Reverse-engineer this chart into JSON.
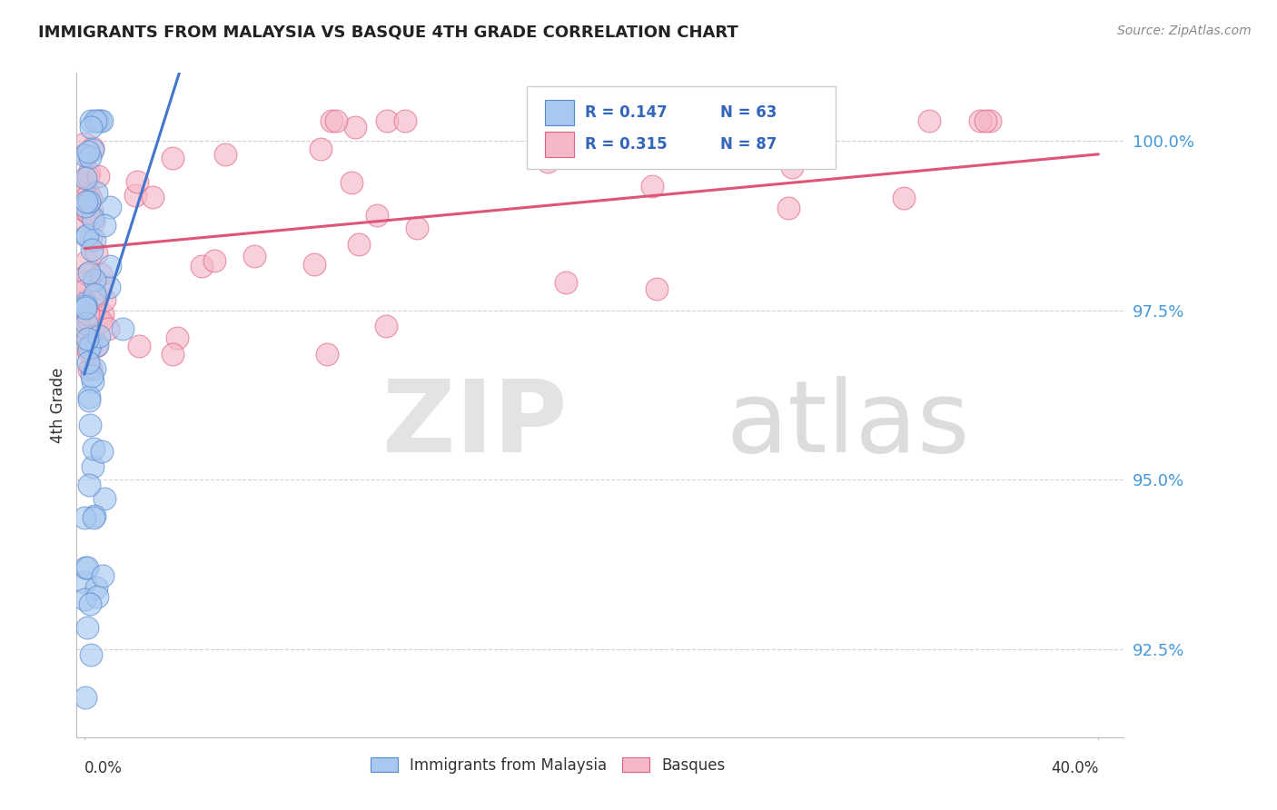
{
  "title": "IMMIGRANTS FROM MALAYSIA VS BASQUE 4TH GRADE CORRELATION CHART",
  "source": "Source: ZipAtlas.com",
  "ylabel": "4th Grade",
  "ylim": [
    91.2,
    101.0
  ],
  "xlim": [
    -0.003,
    0.41
  ],
  "yticks": [
    92.5,
    95.0,
    97.5,
    100.0
  ],
  "ytick_labels": [
    "92.5%",
    "95.0%",
    "97.5%",
    "100.0%"
  ],
  "legend_r1": "R = 0.147",
  "legend_n1": "N = 63",
  "legend_r2": "R = 0.315",
  "legend_n2": "N = 87",
  "blue_fill": "#A8C8F0",
  "blue_edge": "#5588CC",
  "pink_fill": "#F5B8C8",
  "pink_edge": "#E06080",
  "blue_line_color": "#4477CC",
  "pink_line_color": "#DD5577",
  "watermark_zip": "ZIP",
  "watermark_atlas": "atlas"
}
